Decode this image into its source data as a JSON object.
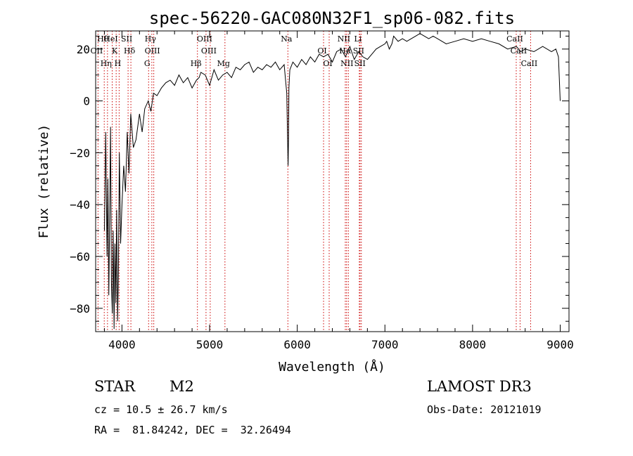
{
  "chart_data": {
    "type": "line",
    "title": "spec-56220-GAC080N32F1_sp06-082.fits",
    "xlabel": "Wavelength (Å)",
    "ylabel": "Flux (relative)",
    "xlim": [
      3700,
      9100
    ],
    "ylim": [
      -89,
      27
    ],
    "xticks": [
      {
        "value": 4000,
        "label": "4000"
      },
      {
        "value": 5000,
        "label": "5000"
      },
      {
        "value": 6000,
        "label": "6000"
      },
      {
        "value": 7000,
        "label": "7000"
      },
      {
        "value": 8000,
        "label": "8000"
      },
      {
        "value": 9000,
        "label": "9000"
      }
    ],
    "yticks": [
      {
        "value": 20,
        "label": "20"
      },
      {
        "value": 0,
        "label": "0"
      },
      {
        "value": -20,
        "label": "−20"
      },
      {
        "value": -40,
        "label": "−40"
      },
      {
        "value": -60,
        "label": "−60"
      },
      {
        "value": -80,
        "label": "−80"
      }
    ],
    "series": [
      {
        "name": "flux",
        "x": [
          3800,
          3815,
          3830,
          3840,
          3850,
          3860,
          3870,
          3880,
          3890,
          3900,
          3910,
          3920,
          3930,
          3940,
          3950,
          3960,
          3970,
          3985,
          4000,
          4020,
          4040,
          4060,
          4080,
          4100,
          4130,
          4160,
          4200,
          4230,
          4260,
          4300,
          4330,
          4360,
          4400,
          4450,
          4500,
          4550,
          4600,
          4650,
          4700,
          4750,
          4800,
          4850,
          4880,
          4900,
          4950,
          5000,
          5050,
          5100,
          5150,
          5200,
          5250,
          5300,
          5350,
          5400,
          5450,
          5500,
          5550,
          5600,
          5650,
          5700,
          5750,
          5800,
          5850,
          5880,
          5895,
          5900,
          5905,
          5915,
          5950,
          6000,
          6050,
          6100,
          6150,
          6200,
          6250,
          6300,
          6350,
          6400,
          6450,
          6500,
          6550,
          6600,
          6650,
          6700,
          6750,
          6800,
          6850,
          6900,
          6950,
          7000,
          7020,
          7050,
          7080,
          7100,
          7150,
          7200,
          7250,
          7300,
          7350,
          7400,
          7450,
          7500,
          7550,
          7600,
          7700,
          7800,
          7900,
          8000,
          8100,
          8200,
          8300,
          8400,
          8500,
          8550,
          8600,
          8700,
          8800,
          8900,
          8950,
          8980,
          9000
        ],
        "y": [
          -50,
          -12,
          -60,
          -30,
          -75,
          -45,
          -10,
          -70,
          -82,
          -50,
          -88,
          -55,
          -78,
          -42,
          -85,
          -65,
          -20,
          -55,
          -40,
          -25,
          -35,
          -12,
          -28,
          -5,
          -18,
          -15,
          -5,
          -12,
          -3,
          0,
          -4,
          3,
          2,
          5,
          7,
          8,
          6,
          10,
          7,
          9,
          5,
          8,
          9,
          11,
          10,
          6,
          12,
          8,
          10,
          11,
          9,
          13,
          12,
          14,
          15,
          11,
          13,
          12,
          14,
          13,
          15,
          12,
          14,
          3,
          -25,
          -15,
          5,
          12,
          15,
          13,
          16,
          14,
          17,
          15,
          18,
          17,
          18,
          15,
          19,
          20,
          17,
          21,
          16,
          19,
          17,
          16,
          18,
          20,
          21,
          22,
          23,
          20,
          22,
          25,
          23,
          24,
          23,
          24,
          25,
          26,
          25,
          24,
          25,
          24,
          22,
          23,
          24,
          23,
          24,
          23,
          22,
          20,
          21,
          19,
          20,
          19,
          21,
          19,
          20,
          17,
          0
        ]
      }
    ],
    "line_markers": [
      {
        "label": "Hθ",
        "wavelength": 3798
      },
      {
        "label": "OII",
        "wavelength": 3727
      },
      {
        "label": "Hη",
        "wavelength": 3835
      },
      {
        "label": "HeI",
        "wavelength": 3889
      },
      {
        "label": "K",
        "wavelength": 3934
      },
      {
        "label": "H",
        "wavelength": 3968
      },
      {
        "label": "SII",
        "wavelength": 4070
      },
      {
        "label": "Hδ",
        "wavelength": 4102
      },
      {
        "label": "G",
        "wavelength": 4304
      },
      {
        "label": "Hγ",
        "wavelength": 4341
      },
      {
        "label": "OIII",
        "wavelength": 4363
      },
      {
        "label": "Hβ",
        "wavelength": 4861
      },
      {
        "label": "OIII",
        "wavelength": 4959
      },
      {
        "label": "OIII",
        "wavelength": 5007
      },
      {
        "label": "Mg",
        "wavelength": 5175
      },
      {
        "label": "Na",
        "wavelength": 5893
      },
      {
        "label": "OI",
        "wavelength": 6300
      },
      {
        "label": "OI",
        "wavelength": 6364
      },
      {
        "label": "NII",
        "wavelength": 6548
      },
      {
        "label": "Hα",
        "wavelength": 6563
      },
      {
        "label": "NII",
        "wavelength": 6583
      },
      {
        "label": "Li",
        "wavelength": 6708
      },
      {
        "label": "SII",
        "wavelength": 6716
      },
      {
        "label": "SII",
        "wavelength": 6731
      },
      {
        "label": "CaII",
        "wavelength": 8498
      },
      {
        "label": "CaII",
        "wavelength": 8542
      },
      {
        "label": "CaII",
        "wavelength": 8662
      }
    ]
  },
  "info": {
    "object_class": "STAR",
    "subclass": "M2",
    "survey": "LAMOST DR3",
    "redshift": "cz = 10.5 ± 26.7 km/s",
    "obs_date": "Obs-Date: 20121019",
    "coords": "RA =  81.84242, DEC =  32.26494"
  },
  "colors": {
    "line": "#000000",
    "marker": "#cc0000",
    "background": "#ffffff"
  }
}
